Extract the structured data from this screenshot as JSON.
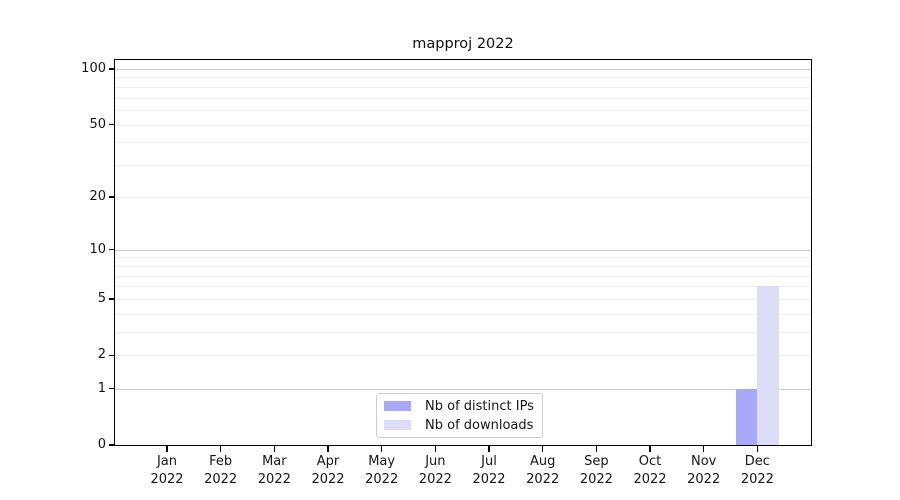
{
  "chart_data": {
    "type": "bar",
    "title": "mapproj 2022",
    "categories": [
      "Jan 2022",
      "Feb 2022",
      "Mar 2022",
      "Apr 2022",
      "May 2022",
      "Jun 2022",
      "Jul 2022",
      "Aug 2022",
      "Sep 2022",
      "Oct 2022",
      "Nov 2022",
      "Dec 2022"
    ],
    "series": [
      {
        "name": "Nb of distinct IPs",
        "color": "#a8a8f8",
        "values": [
          0,
          0,
          0,
          0,
          0,
          0,
          0,
          0,
          0,
          0,
          0,
          1
        ]
      },
      {
        "name": "Nb of downloads",
        "color": "#dcdcf8",
        "values": [
          0,
          0,
          0,
          0,
          0,
          0,
          0,
          0,
          0,
          0,
          0,
          6
        ]
      }
    ],
    "xlabel": "",
    "ylabel": "",
    "yscale": "log1p",
    "ylim": [
      0,
      112
    ],
    "yticks": [
      0,
      1,
      2,
      5,
      10,
      20,
      50,
      100
    ],
    "yticks_minor": [
      3,
      4,
      6,
      7,
      8,
      9,
      30,
      40,
      60,
      70,
      80,
      90
    ],
    "yticks_decade": [
      1,
      10,
      100
    ],
    "grid": "horizontal",
    "legend_position": "lower center"
  },
  "colors": {
    "grid_decade": "#c9c9c9",
    "grid_minor": "#ececec",
    "spine": "#000000"
  }
}
